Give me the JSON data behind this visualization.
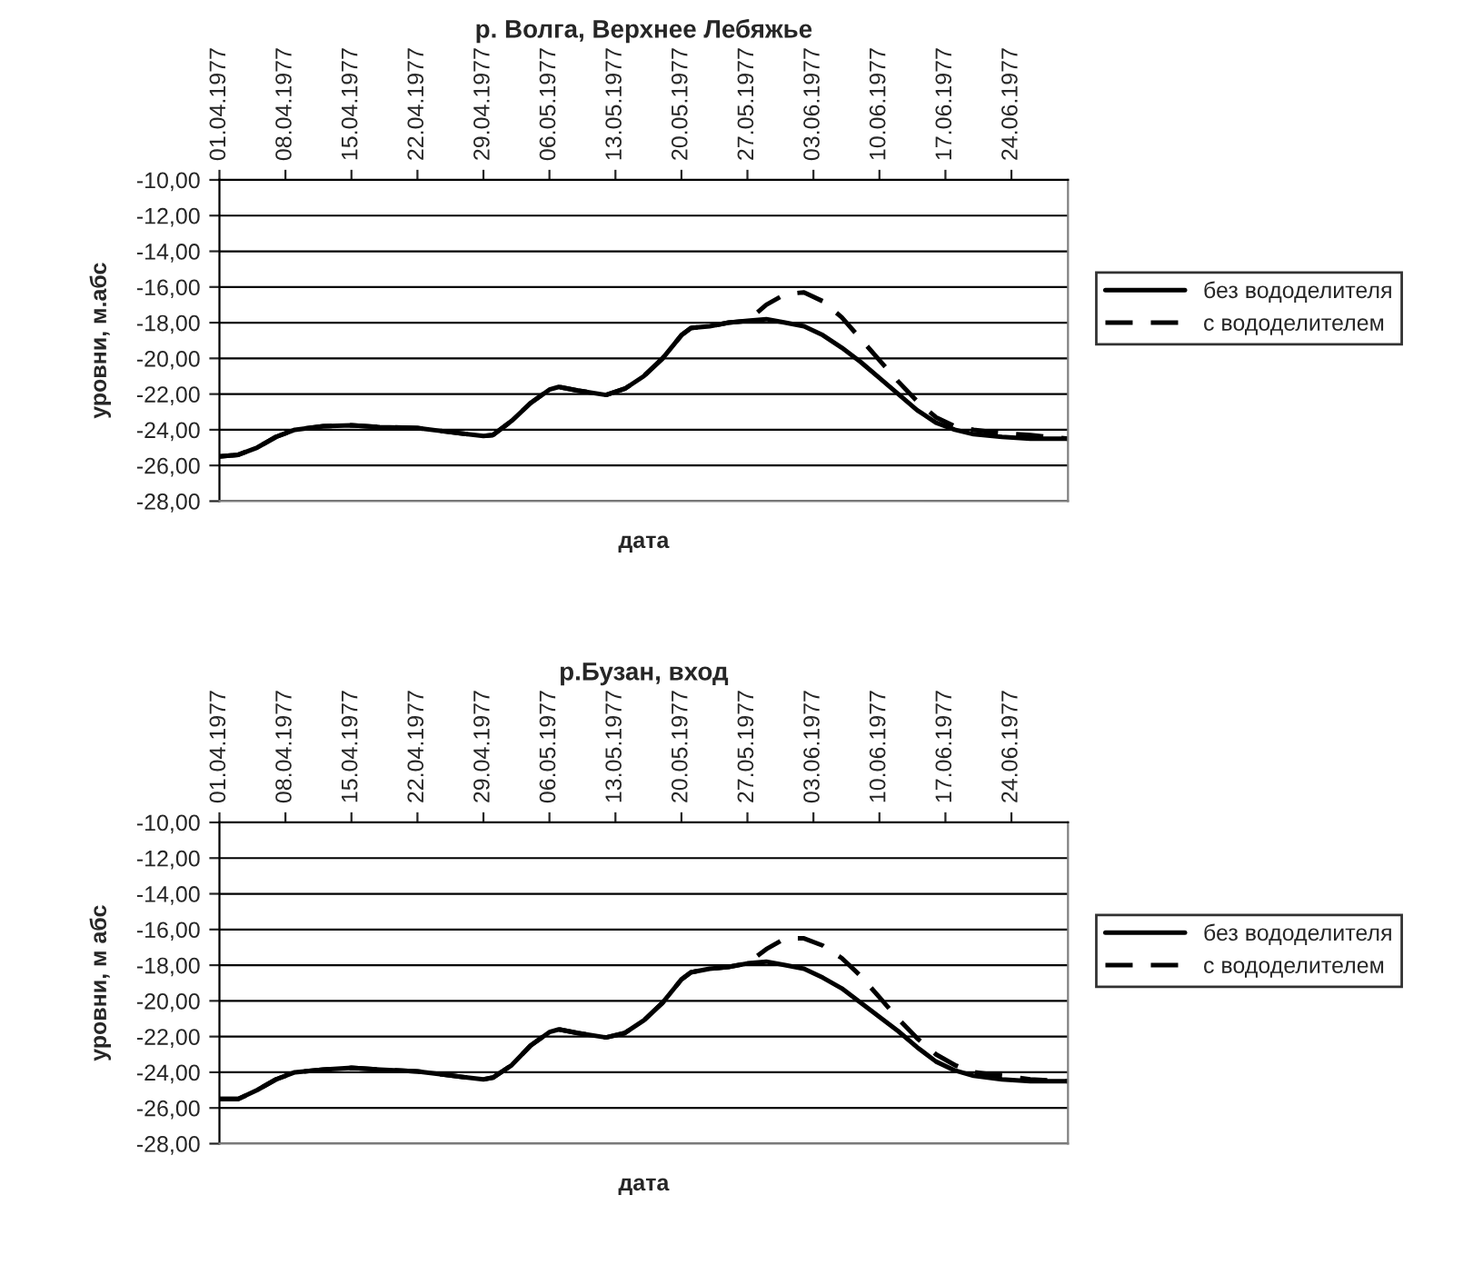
{
  "chart_data": [
    {
      "type": "line",
      "title": "р. Волга, Верхнее Лебяжье",
      "xlabel": "дата",
      "ylabel": "уровни, м.абс",
      "grid": "y",
      "legend": "right",
      "x": [
        "1977-04-01",
        "1977-04-03",
        "1977-04-05",
        "1977-04-07",
        "1977-04-09",
        "1977-04-12",
        "1977-04-15",
        "1977-04-18",
        "1977-04-22",
        "1977-04-25",
        "1977-04-29",
        "1977-04-30",
        "1977-05-02",
        "1977-05-04",
        "1977-05-06",
        "1977-05-07",
        "1977-05-09",
        "1977-05-12",
        "1977-05-14",
        "1977-05-16",
        "1977-05-18",
        "1977-05-20",
        "1977-05-21",
        "1977-05-23",
        "1977-05-25",
        "1977-05-27",
        "1977-05-29",
        "1977-05-31",
        "1977-06-02",
        "1977-06-04",
        "1977-06-06",
        "1977-06-08",
        "1977-06-10",
        "1977-06-12",
        "1977-06-14",
        "1977-06-16",
        "1977-06-18",
        "1977-06-20",
        "1977-06-23",
        "1977-06-26",
        "1977-06-30"
      ],
      "series": [
        {
          "name": "без вододелителя",
          "color": "#000000",
          "line_style": "solid",
          "values": [
            -25.5,
            -25.4,
            -25.0,
            -24.4,
            -24.0,
            -23.8,
            -23.75,
            -23.85,
            -23.9,
            -24.1,
            -24.35,
            -24.3,
            -23.5,
            -22.5,
            -21.75,
            -21.6,
            -21.8,
            -22.05,
            -21.7,
            -21.0,
            -20.0,
            -18.7,
            -18.3,
            -18.2,
            -18.0,
            -17.9,
            -17.8,
            -18.0,
            -18.2,
            -18.7,
            -19.4,
            -20.2,
            -21.1,
            -22.0,
            -22.9,
            -23.6,
            -24.0,
            -24.25,
            -24.4,
            -24.5,
            -24.5
          ]
        },
        {
          "name": "с вододелителем",
          "color": "#000000",
          "line_style": "dashed",
          "values": [
            -25.5,
            -25.4,
            -25.0,
            -24.4,
            -24.0,
            -23.8,
            -23.75,
            -23.85,
            -23.9,
            -24.1,
            -24.35,
            -24.3,
            -23.5,
            -22.5,
            -21.75,
            -21.6,
            -21.8,
            -22.05,
            -21.7,
            -21.0,
            -20.0,
            -18.7,
            -18.3,
            -18.2,
            -18.0,
            -17.9,
            -17.0,
            -16.4,
            -16.3,
            -16.8,
            -17.7,
            -18.9,
            -20.1,
            -21.3,
            -22.4,
            -23.3,
            -23.8,
            -24.0,
            -24.2,
            -24.3,
            -24.5
          ]
        }
      ],
      "xlim": [
        "1977-04-01",
        "1977-06-30"
      ],
      "xticks": [
        {
          "value": "1977-04-01",
          "label": "01.04.1977"
        },
        {
          "value": "1977-04-08",
          "label": "08.04.1977"
        },
        {
          "value": "1977-04-15",
          "label": "15.04.1977"
        },
        {
          "value": "1977-04-22",
          "label": "22.04.1977"
        },
        {
          "value": "1977-04-29",
          "label": "29.04.1977"
        },
        {
          "value": "1977-05-06",
          "label": "06.05.1977"
        },
        {
          "value": "1977-05-13",
          "label": "13.05.1977"
        },
        {
          "value": "1977-05-20",
          "label": "20.05.1977"
        },
        {
          "value": "1977-05-27",
          "label": "27.05.1977"
        },
        {
          "value": "1977-06-03",
          "label": "03.06.1977"
        },
        {
          "value": "1977-06-10",
          "label": "10.06.1977"
        },
        {
          "value": "1977-06-17",
          "label": "17.06.1977"
        },
        {
          "value": "1977-06-24",
          "label": "24.06.1977"
        }
      ],
      "ylim": [
        -28,
        -10
      ],
      "yticks": [
        {
          "value": -10,
          "label": "-10,00"
        },
        {
          "value": -12,
          "label": "-12,00"
        },
        {
          "value": -14,
          "label": "-14,00"
        },
        {
          "value": -16,
          "label": "-16,00"
        },
        {
          "value": -18,
          "label": "-18,00"
        },
        {
          "value": -20,
          "label": "-20,00"
        },
        {
          "value": -22,
          "label": "-22,00"
        },
        {
          "value": -24,
          "label": "-24,00"
        },
        {
          "value": -26,
          "label": "-26,00"
        },
        {
          "value": -28,
          "label": "-28,00"
        }
      ]
    },
    {
      "type": "line",
      "title": "р.Бузан, вход",
      "xlabel": "дата",
      "ylabel": "уровни, м абс",
      "grid": "y",
      "legend": "right",
      "x": [
        "1977-04-01",
        "1977-04-03",
        "1977-04-05",
        "1977-04-07",
        "1977-04-09",
        "1977-04-12",
        "1977-04-15",
        "1977-04-18",
        "1977-04-22",
        "1977-04-25",
        "1977-04-29",
        "1977-04-30",
        "1977-05-02",
        "1977-05-04",
        "1977-05-06",
        "1977-05-07",
        "1977-05-09",
        "1977-05-12",
        "1977-05-14",
        "1977-05-16",
        "1977-05-18",
        "1977-05-20",
        "1977-05-21",
        "1977-05-23",
        "1977-05-25",
        "1977-05-27",
        "1977-05-29",
        "1977-05-31",
        "1977-06-02",
        "1977-06-04",
        "1977-06-06",
        "1977-06-08",
        "1977-06-10",
        "1977-06-12",
        "1977-06-14",
        "1977-06-16",
        "1977-06-18",
        "1977-06-20",
        "1977-06-23",
        "1977-06-26",
        "1977-06-30"
      ],
      "series": [
        {
          "name": "без вододелителя",
          "color": "#000000",
          "line_style": "solid",
          "values": [
            -25.5,
            -25.5,
            -25.0,
            -24.4,
            -24.0,
            -23.85,
            -23.75,
            -23.85,
            -23.95,
            -24.15,
            -24.4,
            -24.3,
            -23.6,
            -22.5,
            -21.75,
            -21.6,
            -21.8,
            -22.05,
            -21.8,
            -21.1,
            -20.1,
            -18.8,
            -18.4,
            -18.2,
            -18.1,
            -17.9,
            -17.8,
            -18.0,
            -18.2,
            -18.7,
            -19.3,
            -20.1,
            -20.9,
            -21.7,
            -22.6,
            -23.4,
            -23.9,
            -24.2,
            -24.4,
            -24.5,
            -24.5
          ]
        },
        {
          "name": "с вододелителем",
          "color": "#000000",
          "line_style": "dashed",
          "values": [
            -25.5,
            -25.5,
            -25.0,
            -24.4,
            -24.0,
            -23.85,
            -23.75,
            -23.85,
            -23.95,
            -24.15,
            -24.4,
            -24.3,
            -23.6,
            -22.5,
            -21.75,
            -21.6,
            -21.8,
            -22.05,
            -21.8,
            -21.1,
            -20.1,
            -18.8,
            -18.4,
            -18.2,
            -18.1,
            -17.9,
            -17.1,
            -16.5,
            -16.5,
            -16.9,
            -17.6,
            -18.6,
            -19.8,
            -21.0,
            -22.1,
            -23.0,
            -23.6,
            -24.0,
            -24.2,
            -24.4,
            -24.5
          ]
        }
      ],
      "xlim": [
        "1977-04-01",
        "1977-06-30"
      ],
      "xticks": [
        {
          "value": "1977-04-01",
          "label": "01.04.1977"
        },
        {
          "value": "1977-04-08",
          "label": "08.04.1977"
        },
        {
          "value": "1977-04-15",
          "label": "15.04.1977"
        },
        {
          "value": "1977-04-22",
          "label": "22.04.1977"
        },
        {
          "value": "1977-04-29",
          "label": "29.04.1977"
        },
        {
          "value": "1977-05-06",
          "label": "06.05.1977"
        },
        {
          "value": "1977-05-13",
          "label": "13.05.1977"
        },
        {
          "value": "1977-05-20",
          "label": "20.05.1977"
        },
        {
          "value": "1977-05-27",
          "label": "27.05.1977"
        },
        {
          "value": "1977-06-03",
          "label": "03.06.1977"
        },
        {
          "value": "1977-06-10",
          "label": "10.06.1977"
        },
        {
          "value": "1977-06-17",
          "label": "17.06.1977"
        },
        {
          "value": "1977-06-24",
          "label": "24.06.1977"
        }
      ],
      "ylim": [
        -28,
        -10
      ],
      "yticks": [
        {
          "value": -10,
          "label": "-10,00"
        },
        {
          "value": -12,
          "label": "-12,00"
        },
        {
          "value": -14,
          "label": "-14,00"
        },
        {
          "value": -16,
          "label": "-16,00"
        },
        {
          "value": -18,
          "label": "-18,00"
        },
        {
          "value": -20,
          "label": "-20,00"
        },
        {
          "value": -22,
          "label": "-22,00"
        },
        {
          "value": -24,
          "label": "-24,00"
        },
        {
          "value": -26,
          "label": "-26,00"
        },
        {
          "value": -28,
          "label": "-28,00"
        }
      ]
    }
  ]
}
